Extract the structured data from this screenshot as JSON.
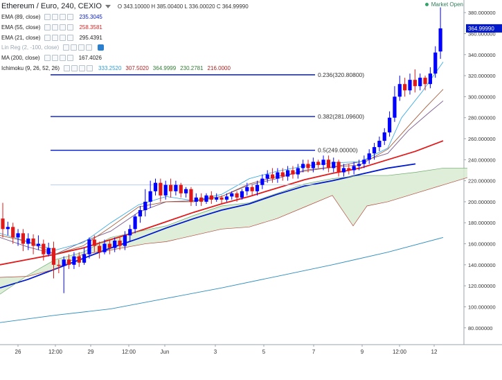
{
  "header": {
    "symbol": "Ethereum / Euro, 240, CEXIO",
    "ohlc": "O 343.10000 H 385.00400 L 336.00020 C 364.99990",
    "market_status": "Market Open"
  },
  "indicators": [
    {
      "label": "EMA (89, close)",
      "values": [
        "235.3045"
      ],
      "value_colors": [
        "#0019cc"
      ],
      "muted": false,
      "eye": false
    },
    {
      "label": "EMA (55, close)",
      "values": [
        "258.3581"
      ],
      "value_colors": [
        "#d62728"
      ],
      "muted": false,
      "eye": false
    },
    {
      "label": "EMA (21, close)",
      "values": [
        "295.4391"
      ],
      "value_colors": [
        "#222222"
      ],
      "muted": false,
      "eye": false
    },
    {
      "label": "Lin Reg (2, -100, close)",
      "values": [],
      "value_colors": [],
      "muted": true,
      "eye": true
    },
    {
      "label": "MA (200, close)",
      "values": [
        "167.4026"
      ],
      "value_colors": [
        "#222222"
      ],
      "muted": false,
      "eye": false
    },
    {
      "label": "Ichimoku (9, 26, 52, 26)",
      "values": [
        "333.2520",
        "307.5020",
        "364.9999",
        "230.2781",
        "216.0000"
      ],
      "value_colors": [
        "#2a9fd6",
        "#b71c1c",
        "#2e7d32",
        "#2e7d32",
        "#b71c1c"
      ],
      "muted": false,
      "eye": false
    }
  ],
  "colors": {
    "up": "#0000ff",
    "down": "#e01a1a",
    "ema89": "#0019cc",
    "ema55": "#e01a1a",
    "ema21": "#7a5c8e",
    "ma200": "#2b8cbe",
    "tenkan": "#29a3e0",
    "kijun": "#a0522d",
    "cloud": "#d8ebd2",
    "spanA": "#6aa86a",
    "spanB": "#b5473a",
    "fib": "#0019cc",
    "last_price_bg": "#0019cc"
  },
  "chart_data": {
    "type": "candlestick",
    "title": "Ethereum / Euro, 240, CEXIO",
    "ylim": [
      64,
      392
    ],
    "y_ticks": [
      "380.000000",
      "360.000000",
      "340.000000",
      "320.000000",
      "300.000000",
      "280.000000",
      "260.000000",
      "240.000000",
      "220.000000",
      "200.000000",
      "180.000000",
      "160.000000",
      "140.000000",
      "120.000000",
      "100.000000",
      "80.000000"
    ],
    "x_ticks": [
      "26",
      "12:00",
      "29",
      "12:00",
      "Jun",
      "3",
      "5",
      "7",
      "9",
      "12:00",
      "12"
    ],
    "last_price_label": "364.99990",
    "fib_levels": [
      {
        "label": "0.236(320.80800)",
        "value": 320.808
      },
      {
        "label": "0.382(281.09600)",
        "value": 281.096
      },
      {
        "label": "0.5(249.00000)",
        "value": 249.0
      }
    ],
    "series": [
      {
        "name": "EMA (89, close)",
        "style": "ema89",
        "values": [
          [
            0,
            118
          ],
          [
            40,
            126
          ],
          [
            80,
            136
          ],
          [
            120,
            146
          ],
          [
            160,
            156
          ],
          [
            200,
            165
          ],
          [
            240,
            175
          ],
          [
            280,
            184
          ],
          [
            320,
            192
          ],
          [
            360,
            198
          ],
          [
            400,
            207
          ],
          [
            440,
            215
          ],
          [
            480,
            220
          ],
          [
            520,
            226
          ],
          [
            560,
            232
          ],
          [
            600,
            236
          ]
        ]
      },
      {
        "name": "EMA (55, close)",
        "style": "ema55",
        "values": [
          [
            0,
            140
          ],
          [
            40,
            145
          ],
          [
            80,
            150
          ],
          [
            120,
            156
          ],
          [
            160,
            164
          ],
          [
            200,
            172
          ],
          [
            240,
            181
          ],
          [
            280,
            190
          ],
          [
            320,
            198
          ],
          [
            360,
            205
          ],
          [
            400,
            213
          ],
          [
            440,
            221
          ],
          [
            480,
            227
          ],
          [
            520,
            232
          ],
          [
            560,
            240
          ],
          [
            600,
            248
          ],
          [
            640,
            258
          ]
        ]
      },
      {
        "name": "EMA (21, close)",
        "style": "ema21",
        "values": [
          [
            0,
            166
          ],
          [
            40,
            157
          ],
          [
            80,
            150
          ],
          [
            120,
            162
          ],
          [
            160,
            172
          ],
          [
            200,
            190
          ],
          [
            240,
            200
          ],
          [
            280,
            201
          ],
          [
            320,
            205
          ],
          [
            360,
            216
          ],
          [
            400,
            222
          ],
          [
            440,
            230
          ],
          [
            480,
            233
          ],
          [
            520,
            238
          ],
          [
            560,
            246
          ],
          [
            590,
            268
          ],
          [
            620,
            285
          ],
          [
            640,
            296
          ]
        ]
      },
      {
        "name": "MA (200, close)",
        "style": "ma200",
        "values": [
          [
            0,
            85
          ],
          [
            80,
            92
          ],
          [
            160,
            98
          ],
          [
            240,
            108
          ],
          [
            320,
            118
          ],
          [
            400,
            129
          ],
          [
            480,
            140
          ],
          [
            560,
            152
          ],
          [
            640,
            166
          ]
        ]
      },
      {
        "name": "Tenkan",
        "style": "tenkan",
        "values": [
          [
            0,
            170
          ],
          [
            40,
            162
          ],
          [
            80,
            154
          ],
          [
            120,
            161
          ],
          [
            160,
            180
          ],
          [
            200,
            197
          ],
          [
            240,
            205
          ],
          [
            280,
            201
          ],
          [
            320,
            207
          ],
          [
            360,
            222
          ],
          [
            400,
            229
          ],
          [
            440,
            234
          ],
          [
            480,
            237
          ],
          [
            520,
            238
          ],
          [
            560,
            251
          ],
          [
            580,
            280
          ],
          [
            610,
            305
          ],
          [
            640,
            333
          ]
        ]
      },
      {
        "name": "Kijun",
        "style": "kijun",
        "values": [
          [
            0,
            168
          ],
          [
            40,
            162
          ],
          [
            80,
            150
          ],
          [
            120,
            158
          ],
          [
            160,
            176
          ],
          [
            200,
            195
          ],
          [
            240,
            200
          ],
          [
            280,
            200
          ],
          [
            320,
            205
          ],
          [
            360,
            217
          ],
          [
            400,
            224
          ],
          [
            440,
            229
          ],
          [
            480,
            233
          ],
          [
            520,
            235
          ],
          [
            560,
            250
          ],
          [
            590,
            272
          ],
          [
            615,
            290
          ],
          [
            640,
            307
          ]
        ]
      },
      {
        "name": "Senkou A",
        "style": "spanA",
        "values": [
          [
            0,
            112
          ],
          [
            40,
            130
          ],
          [
            80,
            145
          ],
          [
            120,
            152
          ],
          [
            160,
            166
          ],
          [
            210,
            173
          ],
          [
            240,
            177
          ],
          [
            280,
            187
          ],
          [
            320,
            196
          ],
          [
            360,
            199
          ],
          [
            400,
            208
          ],
          [
            440,
            217
          ],
          [
            480,
            222
          ],
          [
            520,
            225
          ],
          [
            560,
            225
          ],
          [
            600,
            228
          ],
          [
            640,
            232
          ],
          [
            675,
            232
          ]
        ]
      },
      {
        "name": "Senkou B",
        "style": "spanB",
        "values": [
          [
            0,
            128
          ],
          [
            40,
            129
          ],
          [
            80,
            136
          ],
          [
            120,
            150
          ],
          [
            160,
            154
          ],
          [
            210,
            160
          ],
          [
            240,
            162
          ],
          [
            280,
            168
          ],
          [
            320,
            174
          ],
          [
            360,
            176
          ],
          [
            400,
            184
          ],
          [
            440,
            195
          ],
          [
            480,
            206
          ],
          [
            510,
            177
          ],
          [
            530,
            196
          ],
          [
            560,
            200
          ],
          [
            600,
            208
          ],
          [
            640,
            216
          ],
          [
            675,
            223
          ]
        ]
      }
    ],
    "candles": [
      [
        0,
        184,
        174,
        199,
        166
      ],
      [
        1,
        174,
        176,
        181,
        168
      ],
      [
        2,
        176,
        166,
        180,
        160
      ],
      [
        3,
        166,
        170,
        174,
        158
      ],
      [
        4,
        170,
        160,
        174,
        153
      ],
      [
        5,
        160,
        165,
        170,
        154
      ],
      [
        6,
        165,
        158,
        169,
        150
      ],
      [
        7,
        158,
        160,
        168,
        154
      ],
      [
        8,
        160,
        150,
        164,
        144
      ],
      [
        9,
        150,
        156,
        161,
        148
      ],
      [
        10,
        156,
        140,
        162,
        127
      ],
      [
        11,
        140,
        139,
        145,
        132
      ],
      [
        12,
        139,
        145,
        148,
        113
      ],
      [
        13,
        145,
        140,
        150,
        136
      ],
      [
        14,
        140,
        148,
        152,
        136
      ],
      [
        15,
        148,
        142,
        152,
        138
      ],
      [
        16,
        142,
        150,
        156,
        140
      ],
      [
        17,
        150,
        164,
        166,
        146
      ],
      [
        18,
        164,
        158,
        168,
        152
      ],
      [
        19,
        158,
        152,
        162,
        146
      ],
      [
        20,
        152,
        160,
        164,
        150
      ],
      [
        21,
        160,
        156,
        164,
        150
      ],
      [
        22,
        156,
        163,
        166,
        152
      ],
      [
        23,
        163,
        158,
        166,
        154
      ],
      [
        24,
        158,
        168,
        172,
        154
      ],
      [
        25,
        168,
        174,
        178,
        162
      ],
      [
        26,
        174,
        186,
        188,
        170
      ],
      [
        27,
        186,
        192,
        196,
        180
      ],
      [
        28,
        192,
        200,
        212,
        186
      ],
      [
        29,
        200,
        210,
        220,
        194
      ],
      [
        30,
        210,
        218,
        222,
        206
      ],
      [
        31,
        218,
        206,
        222,
        200
      ],
      [
        32,
        206,
        216,
        220,
        202
      ],
      [
        33,
        216,
        210,
        222,
        204
      ],
      [
        34,
        210,
        216,
        220,
        206
      ],
      [
        35,
        216,
        208,
        218,
        204
      ],
      [
        36,
        208,
        212,
        214,
        204
      ],
      [
        37,
        212,
        200,
        214,
        196
      ],
      [
        38,
        200,
        204,
        208,
        196
      ],
      [
        39,
        204,
        200,
        208,
        196
      ],
      [
        40,
        200,
        206,
        208,
        198
      ],
      [
        41,
        206,
        202,
        210,
        198
      ],
      [
        42,
        202,
        204,
        208,
        200
      ],
      [
        43,
        204,
        202,
        206,
        198
      ],
      [
        44,
        202,
        205,
        208,
        200
      ],
      [
        45,
        205,
        208,
        210,
        202
      ],
      [
        46,
        208,
        204,
        210,
        200
      ],
      [
        47,
        204,
        210,
        212,
        202
      ],
      [
        48,
        210,
        214,
        218,
        206
      ],
      [
        49,
        214,
        210,
        216,
        206
      ],
      [
        50,
        210,
        216,
        220,
        206
      ],
      [
        51,
        216,
        222,
        226,
        212
      ],
      [
        52,
        222,
        226,
        230,
        218
      ],
      [
        53,
        226,
        222,
        232,
        218
      ],
      [
        54,
        222,
        228,
        232,
        218
      ],
      [
        55,
        228,
        224,
        232,
        220
      ],
      [
        56,
        224,
        230,
        234,
        220
      ],
      [
        57,
        230,
        226,
        234,
        222
      ],
      [
        58,
        226,
        232,
        236,
        222
      ],
      [
        59,
        232,
        236,
        240,
        228
      ],
      [
        60,
        236,
        232,
        240,
        228
      ],
      [
        61,
        232,
        238,
        242,
        228
      ],
      [
        62,
        238,
        235,
        240,
        232
      ],
      [
        63,
        235,
        240,
        244,
        230
      ],
      [
        64,
        240,
        232,
        244,
        228
      ],
      [
        65,
        232,
        238,
        242,
        228
      ],
      [
        66,
        238,
        228,
        240,
        224
      ],
      [
        67,
        228,
        232,
        236,
        224
      ],
      [
        68,
        232,
        230,
        236,
        226
      ],
      [
        69,
        230,
        234,
        238,
        226
      ],
      [
        70,
        234,
        236,
        240,
        230
      ],
      [
        71,
        236,
        240,
        244,
        232
      ],
      [
        72,
        240,
        246,
        250,
        236
      ],
      [
        73,
        246,
        252,
        256,
        240
      ],
      [
        74,
        252,
        258,
        262,
        248
      ],
      [
        75,
        258,
        266,
        270,
        254
      ],
      [
        76,
        266,
        280,
        286,
        262
      ],
      [
        77,
        280,
        300,
        310,
        276
      ],
      [
        78,
        300,
        312,
        320,
        296
      ],
      [
        79,
        312,
        306,
        318,
        300
      ],
      [
        80,
        306,
        316,
        322,
        302
      ],
      [
        81,
        316,
        310,
        326,
        304
      ],
      [
        82,
        310,
        318,
        322,
        306
      ],
      [
        83,
        318,
        312,
        320,
        306
      ],
      [
        84,
        312,
        322,
        328,
        308
      ],
      [
        85,
        322,
        342,
        348,
        318
      ],
      [
        86,
        343,
        365,
        385,
        336
      ]
    ]
  }
}
